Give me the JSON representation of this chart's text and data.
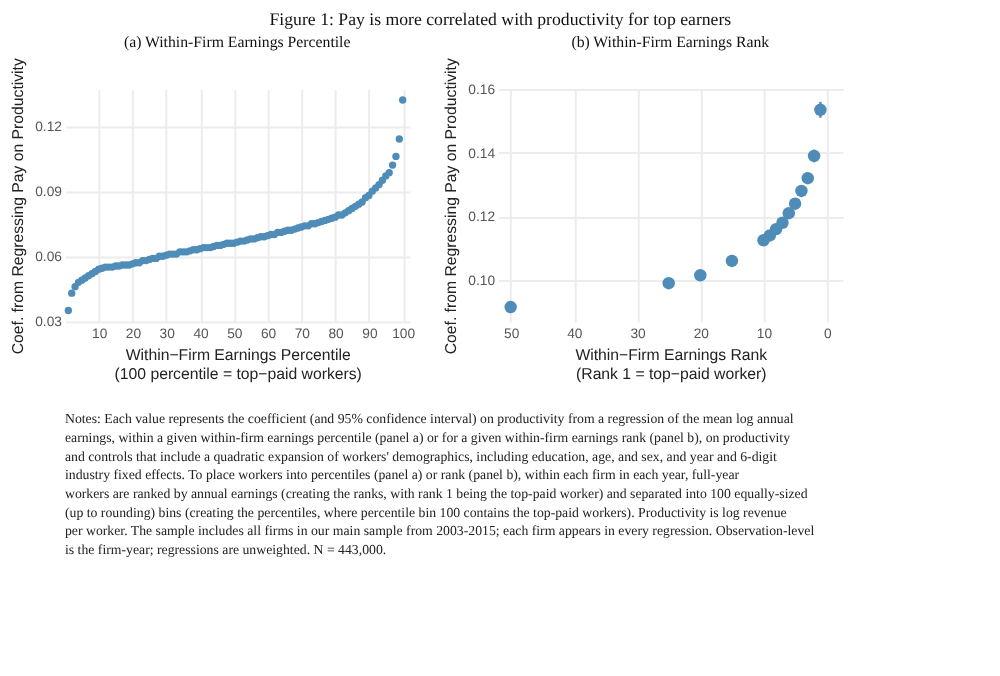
{
  "chart_data": [
    {
      "type": "scatter",
      "title": "Figure 1: Pay is more correlated with productivity for top earners",
      "subtitle": "(a) Within-Firm Earnings Percentile",
      "xlabel": "Within−Firm Earnings Percentile\n(100 percentile = top−paid workers)",
      "ylabel": "Coef. from Regressing Pay on Productivity",
      "x": [
        1,
        2,
        3,
        4,
        5,
        6,
        7,
        8,
        9,
        10,
        11,
        12,
        13,
        14,
        15,
        16,
        17,
        18,
        19,
        20,
        21,
        22,
        23,
        24,
        25,
        26,
        27,
        28,
        29,
        30,
        31,
        32,
        33,
        34,
        35,
        36,
        37,
        38,
        39,
        40,
        41,
        42,
        43,
        44,
        45,
        46,
        47,
        48,
        49,
        50,
        51,
        52,
        53,
        54,
        55,
        56,
        57,
        58,
        59,
        60,
        61,
        62,
        63,
        64,
        65,
        66,
        67,
        68,
        69,
        70,
        71,
        72,
        73,
        74,
        75,
        76,
        77,
        78,
        79,
        80,
        81,
        82,
        83,
        84,
        85,
        86,
        87,
        88,
        89,
        90,
        91,
        92,
        93,
        94,
        95,
        96,
        97,
        98,
        99,
        100
      ],
      "series": [
        {
          "color": "#4f8db8",
          "values": [
            0.035,
            0.043,
            0.046,
            0.048,
            0.049,
            0.05,
            0.051,
            0.052,
            0.053,
            0.054,
            0.0545,
            0.055,
            0.055,
            0.055,
            0.0555,
            0.0555,
            0.056,
            0.056,
            0.056,
            0.0565,
            0.057,
            0.057,
            0.058,
            0.058,
            0.0585,
            0.059,
            0.059,
            0.06,
            0.06,
            0.0605,
            0.061,
            0.061,
            0.061,
            0.062,
            0.062,
            0.062,
            0.0625,
            0.063,
            0.063,
            0.0635,
            0.064,
            0.064,
            0.064,
            0.0645,
            0.065,
            0.065,
            0.0655,
            0.066,
            0.066,
            0.066,
            0.0665,
            0.067,
            0.067,
            0.0675,
            0.068,
            0.068,
            0.0685,
            0.069,
            0.069,
            0.0695,
            0.07,
            0.07,
            0.071,
            0.071,
            0.0715,
            0.072,
            0.072,
            0.0725,
            0.073,
            0.0735,
            0.074,
            0.074,
            0.075,
            0.075,
            0.0755,
            0.076,
            0.0765,
            0.077,
            0.0775,
            0.078,
            0.079,
            0.079,
            0.08,
            0.081,
            0.082,
            0.083,
            0.084,
            0.085,
            0.087,
            0.088,
            0.09,
            0.0915,
            0.093,
            0.095,
            0.097,
            0.0985,
            0.102,
            0.106,
            0.114,
            0.132
          ]
        }
      ],
      "xlim": [
        0,
        102
      ],
      "xticks": [
        10,
        20,
        30,
        40,
        50,
        60,
        70,
        80,
        90,
        100
      ],
      "ylim": [
        0.03,
        0.137
      ],
      "yticks": [
        0.03,
        0.06,
        0.09,
        0.12
      ],
      "grid": true,
      "marker": "circle",
      "annotations": [
        "Notes: Each value represents the coefficient (and 95% confidence interval) on productivity from a regression of the mean log annual earnings, within a given within-firm earnings percentile (panel a) or for a given within-firm earnings rank (panel b), on productivity and controls that include a quadratic expansion of workers' demographics, including education, age, and sex, and year and 6-digit industry fixed effects. To place workers into percentiles (panel a) or rank (panel b), within each firm in each year, full-year workers are ranked by annual earnings (creating the ranks, with rank 1 being the top-paid worker) and separated into 100 equally-sized (up to rounding) bins (creating the percentiles, where percentile bin 100 contains the top-paid workers). Productivity is log revenue per worker. The sample includes all firms in our main sample from 2003-2015; each firm appears in every regression. Observation-level is the firm-year; regressions are unweighted. N = 443,000."
      ]
    },
    {
      "type": "scatter",
      "title": "(b) Within-Firm Earnings Rank",
      "xlabel": "Within−Firm Earnings Rank\n(Rank 1 = top−paid worker)",
      "ylabel": "Coef. from Regressing Pay on Productivity",
      "x": [
        50,
        25,
        20,
        15,
        10,
        9,
        8,
        7,
        6,
        5,
        4,
        3,
        2,
        1
      ],
      "series": [
        {
          "color": "#4f8db8",
          "values": [
            0.0915,
            0.099,
            0.1015,
            0.106,
            0.1125,
            0.114,
            0.116,
            0.118,
            0.121,
            0.124,
            0.128,
            0.132,
            0.139,
            0.1535
          ],
          "errors": [
            0.0012,
            0.0015,
            0.0015,
            0.0015,
            0.0015,
            0.0013,
            0.0013,
            0.0013,
            0.0013,
            0.0014,
            0.0015,
            0.0017,
            0.002,
            0.0025
          ]
        }
      ],
      "xlim": [
        52,
        -2.5
      ],
      "xticks": [
        50,
        40,
        30,
        20,
        10,
        0
      ],
      "ylim": [
        0.087,
        0.16
      ],
      "yticks": [
        {
          "value": 0.1,
          "label": "0.10"
        },
        {
          "value": 0.12,
          "label": "0.12"
        },
        {
          "value": 0.14,
          "label": "0.14"
        },
        {
          "value": 0.16,
          "label": "0.16"
        }
      ],
      "grid": true,
      "marker": "circle"
    }
  ]
}
